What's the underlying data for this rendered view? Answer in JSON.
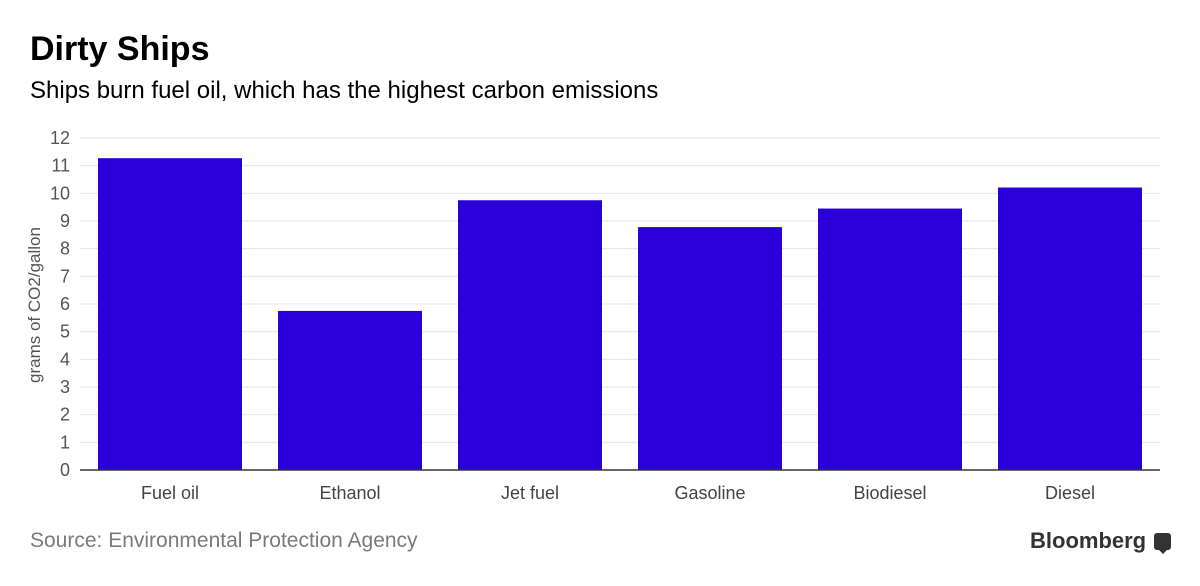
{
  "chart_data": {
    "type": "bar",
    "title": "Dirty Ships",
    "subtitle": "Ships burn fuel oil, which has the highest carbon emissions",
    "categories": [
      "Fuel oil",
      "Ethanol",
      "Jet fuel",
      "Gasoline",
      "Biodiesel",
      "Diesel"
    ],
    "values": [
      11.27,
      5.75,
      9.75,
      8.78,
      9.45,
      10.21
    ],
    "xlabel": "",
    "ylabel": "grams of CO2/gallon",
    "ylim": [
      0,
      12
    ],
    "yticks": [
      0,
      1,
      2,
      3,
      4,
      5,
      6,
      7,
      8,
      9,
      10,
      11,
      12
    ],
    "grid": true,
    "bar_color": "#2a00d8",
    "source": "Source: Environmental Protection Agency",
    "brand": "Bloomberg"
  }
}
